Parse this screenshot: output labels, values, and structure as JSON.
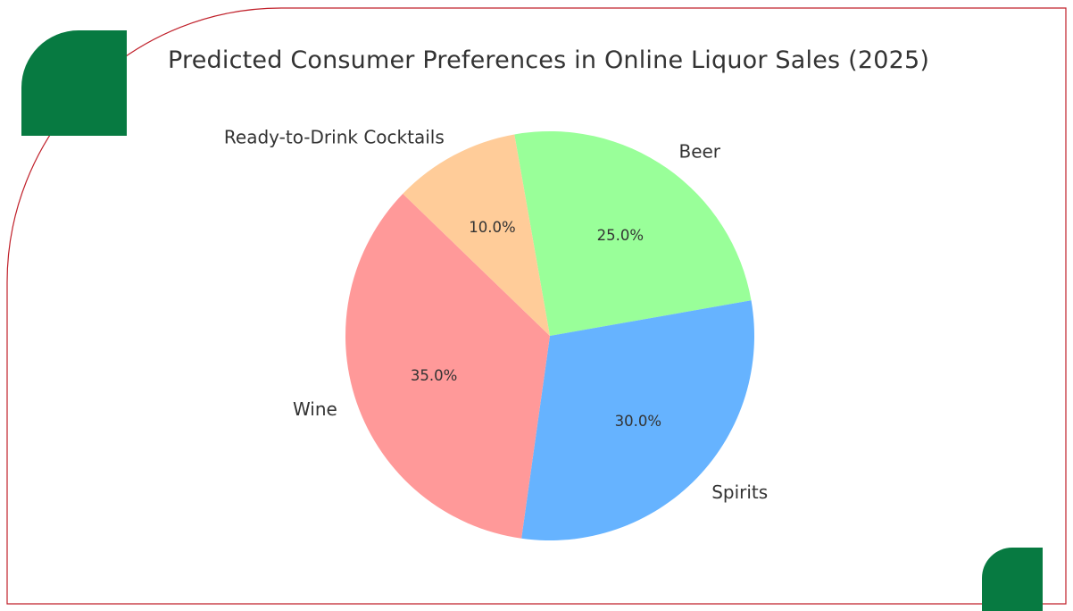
{
  "colors": {
    "frame": "#c0202a",
    "accent": "#077a41",
    "text": "#333333"
  },
  "chart_data": {
    "type": "pie",
    "title": "Predicted Consumer Preferences in Online Liquor Sales (2025)",
    "slices": [
      {
        "label": "Beer",
        "value": 25.0,
        "pct_label": "25.0%",
        "color": "#99ff99"
      },
      {
        "label": "Spirits",
        "value": 30.0,
        "pct_label": "30.0%",
        "color": "#66b3ff"
      },
      {
        "label": "Wine",
        "value": 35.0,
        "pct_label": "35.0%",
        "color": "#ff9999"
      },
      {
        "label": "Ready-to-Drink Cocktails",
        "value": 10.0,
        "pct_label": "10.0%",
        "color": "#ffcc99"
      }
    ],
    "legend": "none"
  }
}
